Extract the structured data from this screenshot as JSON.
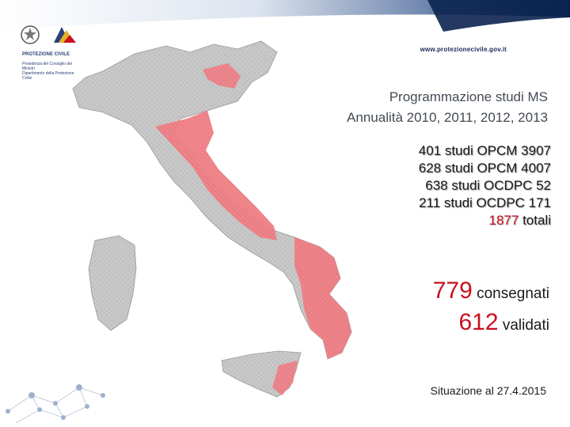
{
  "header": {
    "logo_org": "PROTEZIONE CIVILE",
    "logo_sub": "Presidenza del Consiglio dei Ministri\nDipartimento della Protezione Civile",
    "website": "www.protezionecivile.gov.it"
  },
  "title": {
    "line1": "Programmazione studi MS",
    "line2": "Annualità 2010, 2011, 2012, 2013"
  },
  "studies": [
    {
      "text": "401 studi OPCM 3907"
    },
    {
      "text": "628 studi OPCM 4007"
    },
    {
      "text": "638 studi OCDPC 52"
    },
    {
      "text": "211 studi OCDPC 171"
    }
  ],
  "totals": {
    "number": "1877",
    "label": "totali"
  },
  "delivered": {
    "consegnati_number": "779",
    "consegnati_label": "consegnati",
    "validati_number": "612",
    "validati_label": "validati"
  },
  "situation": "Situazione al 27.4.2015",
  "colors": {
    "banner_dark": "#0b2350",
    "banner_light": "#9fb0cc",
    "highlight": "#c8101e",
    "map_grey": "#c9c9c9",
    "map_red": "#ef7f86"
  }
}
